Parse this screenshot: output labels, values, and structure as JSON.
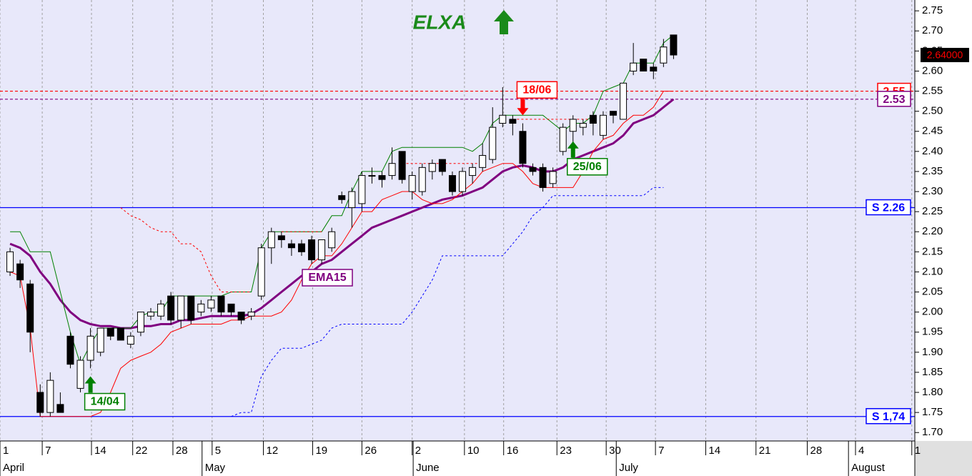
{
  "chart_data": {
    "type": "candlestick",
    "title": "ELXA",
    "xlim": [
      -1.0,
      90.0
    ],
    "ylim": [
      1.679,
      2.777
    ],
    "yticks": [
      {
        "value": 1.7,
        "label": "1.70"
      },
      1.75,
      {
        "value": 1.8,
        "label": "1.80"
      },
      1.85,
      {
        "value": 1.9,
        "label": "1.90"
      },
      1.95,
      {
        "value": 2.0,
        "label": "2.00"
      },
      2.05,
      {
        "value": 2.1,
        "label": "2.10"
      },
      2.15,
      {
        "value": 2.2,
        "label": "2.20"
      },
      2.25,
      {
        "value": 2.3,
        "label": "2.30"
      },
      2.35,
      {
        "value": 2.4,
        "label": "2.40"
      },
      2.45,
      {
        "value": 2.5,
        "label": "2.50"
      },
      2.55,
      {
        "value": 2.6,
        "label": "2.60"
      },
      2.65,
      {
        "value": 2.7,
        "label": "2.70"
      },
      2.75
    ],
    "xticks": [
      {
        "value": -1.0,
        "label": "1"
      },
      {
        "value": 3.2,
        "label": "7"
      },
      {
        "value": 8.1,
        "label": "14"
      },
      {
        "value": 12.2,
        "label": "22"
      },
      {
        "value": 16.2,
        "label": "28"
      },
      {
        "value": 20.1,
        "label": "5"
      },
      {
        "value": 25.2,
        "label": "12"
      },
      {
        "value": 30.1,
        "label": "19"
      },
      {
        "value": 35.0,
        "label": "26"
      },
      {
        "value": 40.0,
        "label": "2"
      },
      {
        "value": 45.2,
        "label": "10"
      },
      {
        "value": 49.1,
        "label": "16"
      },
      {
        "value": 54.4,
        "label": "23"
      },
      {
        "value": 59.3,
        "label": "30"
      },
      {
        "value": 64.2,
        "label": "7"
      },
      {
        "value": 69.2,
        "label": "14"
      },
      {
        "value": 74.2,
        "label": "21"
      },
      {
        "value": 79.3,
        "label": "28"
      },
      {
        "value": 84.1,
        "label": "4"
      },
      {
        "value": 89.7,
        "label": "1"
      }
    ],
    "month_ticks": [
      {
        "value": -1.0,
        "label": "April"
      },
      {
        "value": 19.1,
        "label": "May"
      },
      {
        "value": 40.1,
        "label": "June"
      },
      {
        "value": 60.3,
        "label": "July"
      },
      {
        "value": 83.4,
        "label": "August"
      }
    ],
    "grid": true,
    "x": [
      0,
      1,
      2,
      3,
      4,
      5,
      6,
      7,
      8,
      9,
      10,
      11,
      12,
      13,
      14,
      15,
      16,
      17,
      18,
      19,
      20,
      21,
      22,
      23,
      24,
      25,
      26,
      27,
      28,
      29,
      30,
      31,
      32,
      33,
      34,
      35,
      36,
      37,
      38,
      39,
      40,
      41,
      42,
      43,
      44,
      45,
      46,
      47,
      48,
      49,
      50,
      51,
      52,
      53,
      54,
      55,
      56,
      57,
      58,
      59,
      60,
      61,
      62,
      63,
      64,
      65,
      66
    ],
    "open": [
      2.1,
      2.12,
      2.07,
      1.8,
      1.75,
      1.77,
      1.94,
      1.81,
      1.88,
      1.9,
      1.96,
      1.96,
      1.92,
      1.95,
      1.99,
      1.99,
      2.04,
      1.98,
      2.04,
      2.0,
      2.01,
      2.04,
      2.02,
      2.0,
      1.99,
      2.04,
      2.16,
      2.19,
      2.17,
      2.17,
      2.18,
      2.13,
      2.16,
      2.29,
      2.26,
      2.27,
      2.34,
      2.34,
      2.34,
      2.4,
      2.3,
      2.3,
      2.35,
      2.38,
      2.34,
      2.3,
      2.34,
      2.36,
      2.38,
      2.47,
      2.48,
      2.45,
      2.36,
      2.36,
      2.32,
      2.4,
      2.45,
      2.46,
      2.49,
      2.44,
      2.5,
      2.48,
      2.6,
      2.63,
      2.61,
      2.62,
      2.69
    ],
    "high": [
      2.16,
      2.13,
      2.08,
      1.82,
      1.85,
      1.8,
      1.95,
      1.89,
      1.96,
      1.96,
      1.96,
      1.96,
      1.95,
      2.0,
      2.01,
      2.03,
      2.05,
      2.04,
      2.04,
      2.03,
      2.04,
      2.04,
      2.02,
      2.0,
      2.01,
      2.17,
      2.21,
      2.2,
      2.18,
      2.18,
      2.19,
      2.18,
      2.21,
      2.3,
      2.31,
      2.35,
      2.36,
      2.35,
      2.41,
      2.4,
      2.35,
      2.37,
      2.38,
      2.38,
      2.35,
      2.36,
      2.37,
      2.42,
      2.51,
      2.56,
      2.49,
      2.47,
      2.37,
      2.37,
      2.36,
      2.47,
      2.49,
      2.48,
      2.5,
      2.5,
      2.5,
      2.57,
      2.67,
      2.63,
      2.62,
      2.68,
      2.69
    ],
    "low": [
      2.09,
      2.06,
      1.9,
      1.74,
      1.74,
      1.75,
      1.86,
      1.8,
      1.86,
      1.89,
      1.93,
      1.93,
      1.91,
      1.94,
      1.98,
      1.98,
      1.97,
      1.96,
      1.97,
      1.99,
      2.0,
      1.99,
      1.99,
      1.97,
      1.98,
      2.03,
      2.12,
      2.16,
      2.14,
      2.14,
      2.12,
      2.12,
      2.15,
      2.27,
      2.21,
      2.25,
      2.32,
      2.31,
      2.33,
      2.32,
      2.28,
      2.29,
      2.33,
      2.34,
      2.29,
      2.29,
      2.32,
      2.35,
      2.37,
      2.46,
      2.44,
      2.36,
      2.34,
      2.3,
      2.31,
      2.39,
      2.38,
      2.44,
      2.44,
      2.43,
      2.47,
      2.48,
      2.59,
      2.6,
      2.58,
      2.61,
      2.63
    ],
    "close": [
      2.15,
      2.08,
      1.95,
      1.75,
      1.83,
      1.75,
      1.87,
      1.88,
      1.94,
      1.96,
      1.94,
      1.93,
      1.94,
      2.0,
      2.0,
      2.02,
      1.98,
      2.04,
      1.98,
      2.02,
      2.03,
      2.0,
      2.0,
      1.98,
      2.0,
      2.16,
      2.2,
      2.18,
      2.16,
      2.15,
      2.13,
      2.18,
      2.2,
      2.28,
      2.3,
      2.34,
      2.34,
      2.33,
      2.37,
      2.33,
      2.34,
      2.36,
      2.37,
      2.35,
      2.3,
      2.35,
      2.36,
      2.39,
      2.46,
      2.49,
      2.47,
      2.37,
      2.35,
      2.31,
      2.35,
      2.46,
      2.48,
      2.47,
      2.47,
      2.49,
      2.49,
      2.57,
      2.62,
      2.6,
      2.6,
      2.66,
      2.64
    ],
    "up_color": "#ffffff",
    "down_color": "#000000",
    "lines": [
      {
        "name": "EMA15",
        "color": "#800080",
        "width": 3,
        "dash": false,
        "values": [
          2.17,
          2.16,
          2.14,
          2.1,
          2.07,
          2.03,
          2.0,
          1.98,
          1.97,
          1.965,
          1.965,
          1.96,
          1.96,
          1.965,
          1.965,
          1.97,
          1.97,
          1.98,
          1.98,
          1.985,
          1.99,
          1.99,
          1.99,
          1.99,
          1.995,
          2.01,
          2.03,
          2.05,
          2.07,
          2.09,
          2.1,
          2.12,
          2.13,
          2.15,
          2.17,
          2.19,
          2.21,
          2.22,
          2.23,
          2.24,
          2.25,
          2.26,
          2.27,
          2.28,
          2.285,
          2.29,
          2.3,
          2.31,
          2.33,
          2.35,
          2.36,
          2.365,
          2.36,
          2.35,
          2.35,
          2.36,
          2.38,
          2.39,
          2.4,
          2.41,
          2.42,
          2.44,
          2.47,
          2.48,
          2.49,
          2.51,
          2.53
        ]
      },
      {
        "color": "#008000",
        "width": 1,
        "dash": false,
        "values": [
          2.2,
          2.2,
          2.15,
          2.15,
          2.15,
          2.05,
          1.95,
          1.87,
          1.92,
          1.96,
          1.96,
          1.96,
          1.96,
          1.99,
          2.0,
          2.0,
          2.04,
          2.04,
          2.04,
          2.04,
          2.04,
          2.04,
          2.05,
          2.05,
          2.05,
          2.16,
          2.2,
          2.2,
          2.2,
          2.2,
          2.2,
          2.2,
          2.24,
          2.24,
          2.3,
          2.35,
          2.35,
          2.35,
          2.4,
          2.41,
          2.41,
          2.41,
          2.41,
          2.41,
          2.41,
          2.41,
          2.4,
          2.42,
          2.47,
          2.49,
          2.49,
          2.49,
          2.49,
          2.49,
          2.47,
          2.45,
          2.47,
          2.47,
          2.49,
          2.55,
          2.56,
          2.57,
          2.62,
          2.62,
          2.62,
          2.67,
          2.69
        ]
      },
      {
        "color": "#ff0000",
        "width": 1,
        "dash": false,
        "values": [
          2.1,
          2.09,
          1.96,
          1.74,
          1.74,
          1.74,
          1.74,
          1.74,
          1.74,
          1.75,
          1.8,
          1.86,
          1.88,
          1.89,
          1.9,
          1.92,
          1.95,
          1.96,
          1.97,
          1.97,
          1.97,
          1.97,
          1.98,
          1.98,
          1.99,
          1.99,
          1.99,
          2.0,
          2.03,
          2.08,
          2.12,
          2.14,
          2.14,
          2.17,
          2.21,
          2.25,
          2.25,
          2.28,
          2.29,
          2.3,
          2.3,
          2.28,
          2.27,
          2.27,
          2.28,
          2.3,
          2.32,
          2.35,
          2.36,
          2.37,
          2.37,
          2.35,
          2.32,
          2.31,
          2.31,
          2.31,
          2.31,
          2.35,
          2.4,
          2.43,
          2.44,
          2.47,
          2.49,
          2.49,
          2.51,
          2.55,
          2.55
        ]
      },
      {
        "color": "#ff0000",
        "width": 1,
        "dash": true,
        "values": [
          null,
          null,
          null,
          null,
          null,
          null,
          null,
          null,
          null,
          null,
          null,
          2.26,
          2.24,
          2.23,
          2.21,
          2.2,
          2.2,
          2.17,
          2.17,
          2.15,
          2.09,
          2.05,
          2.05,
          2.05,
          2.05,
          null,
          null,
          2.2,
          2.2,
          2.2,
          2.2,
          2.2,
          null,
          null,
          null,
          null,
          null,
          null,
          null,
          2.37,
          2.37,
          2.37,
          2.37,
          2.37,
          2.37,
          2.37,
          2.37,
          2.37,
          null,
          null,
          2.48,
          2.48,
          2.48,
          2.48,
          2.48,
          2.48,
          2.48,
          2.48,
          2.48,
          null,
          null,
          null,
          null,
          null,
          null,
          null,
          null
        ]
      },
      {
        "color": "#0000ff",
        "width": 1,
        "dash": true,
        "values": [
          null,
          null,
          null,
          null,
          null,
          null,
          null,
          null,
          null,
          null,
          null,
          null,
          null,
          null,
          null,
          null,
          null,
          null,
          null,
          null,
          null,
          null,
          1.74,
          1.75,
          1.75,
          1.84,
          1.88,
          1.91,
          1.91,
          1.91,
          1.92,
          1.93,
          1.96,
          1.97,
          1.97,
          1.97,
          1.97,
          1.97,
          1.97,
          1.97,
          2.0,
          2.04,
          2.08,
          2.14,
          2.14,
          2.14,
          2.14,
          2.14,
          2.14,
          2.14,
          2.17,
          2.2,
          2.24,
          2.26,
          2.29,
          2.29,
          2.29,
          2.29,
          2.29,
          2.29,
          2.29,
          2.29,
          2.29,
          2.29,
          2.31,
          2.31,
          null
        ]
      }
    ],
    "levels": [
      {
        "value": 2.55,
        "color": "#ff0000",
        "dash": true
      },
      {
        "value": 2.53,
        "color": "#800080",
        "dash": true
      },
      {
        "value": 2.26,
        "label": "S 2.26",
        "color": "#0000ff",
        "dash": false
      },
      {
        "value": 1.74,
        "label": "S 1,74",
        "color": "#0000ff",
        "dash": false
      }
    ],
    "annotations": [
      {
        "text": "14/04",
        "x": 8.0,
        "y": 1.84,
        "color": "#008000",
        "direction": "up"
      },
      {
        "text": "18/06",
        "x": 51.0,
        "y": 2.49,
        "color": "#ff0000",
        "direction": "down"
      },
      {
        "text": "25/06",
        "x": 56.0,
        "y": 2.425,
        "color": "#008000",
        "direction": "up"
      }
    ],
    "last_price": 2.64,
    "last_price_label": "2.64000"
  }
}
